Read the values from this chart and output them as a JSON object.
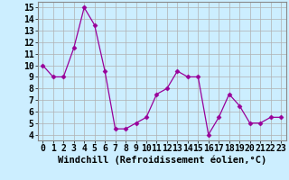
{
  "x": [
    0,
    1,
    2,
    3,
    4,
    5,
    6,
    7,
    8,
    9,
    10,
    11,
    12,
    13,
    14,
    15,
    16,
    17,
    18,
    19,
    20,
    21,
    22,
    23
  ],
  "y": [
    10,
    9,
    9,
    11.5,
    15,
    13.5,
    9.5,
    4.5,
    4.5,
    5,
    5.5,
    7.5,
    8,
    9.5,
    9,
    9,
    4,
    5.5,
    7.5,
    6.5,
    5,
    5,
    5.5,
    5.5
  ],
  "line_color": "#990099",
  "marker": "D",
  "marker_size": 2.5,
  "bg_color": "#cceeff",
  "grid_color": "#b0b0b0",
  "xlabel": "Windchill (Refroidissement éolien,°C)",
  "xlabel_fontsize": 7.5,
  "ylabel_ticks": [
    4,
    5,
    6,
    7,
    8,
    9,
    10,
    11,
    12,
    13,
    14,
    15
  ],
  "xlim": [
    -0.5,
    23.5
  ],
  "ylim": [
    3.5,
    15.5
  ],
  "tick_fontsize": 7,
  "xtick_labels": [
    "0",
    "1",
    "2",
    "3",
    "4",
    "5",
    "6",
    "7",
    "8",
    "9",
    "10",
    "11",
    "12",
    "13",
    "14",
    "15",
    "16",
    "17",
    "18",
    "19",
    "20",
    "21",
    "22",
    "23"
  ]
}
